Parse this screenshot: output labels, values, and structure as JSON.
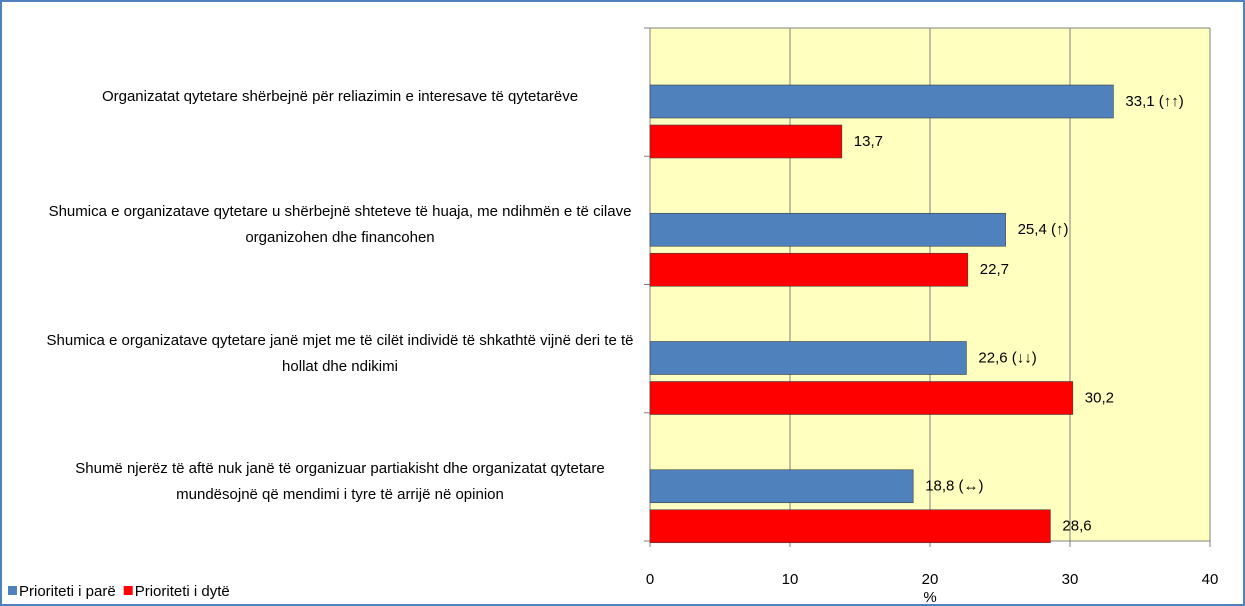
{
  "chart_data": {
    "type": "hbar",
    "categories": [
      "Organizatat qytetare shërbejnë për reliazimin e interesave të qytetarëve",
      "Shumica e organizatave qytetare u shërbejnë shteteve të huaja, me ndihmën e të cilave organizohen dhe financohen",
      "Shumica e organizatave qytetare janë mjet me të cilët individë të shkathtë vijnë deri te të hollat dhe ndikimi",
      "Shumë njerëz të aftë nuk janë të organizuar partiakisht dhe organizatat qytetare mundësojnë që mendimi i tyre të arrijë në opinion"
    ],
    "series": [
      {
        "name": "Prioriteti i parë",
        "color": "#4f81bd",
        "values": [
          33.1,
          25.4,
          22.6,
          18.8
        ],
        "value_labels": [
          "33,1 (↑↑)",
          "25,4 (↑)",
          "22,6 (↓↓)",
          "18,8 (↔)"
        ]
      },
      {
        "name": "Prioriteti i dytë",
        "color": "#ff0000",
        "values": [
          13.7,
          22.7,
          30.2,
          28.6
        ],
        "value_labels": [
          "13,7",
          "22,7",
          "30,2",
          "28,6"
        ]
      }
    ],
    "xlabel": "%",
    "xlim": [
      0,
      40
    ],
    "xticks": [
      0,
      10,
      20,
      30,
      40
    ],
    "grid": true,
    "legend": "bottom-left"
  }
}
